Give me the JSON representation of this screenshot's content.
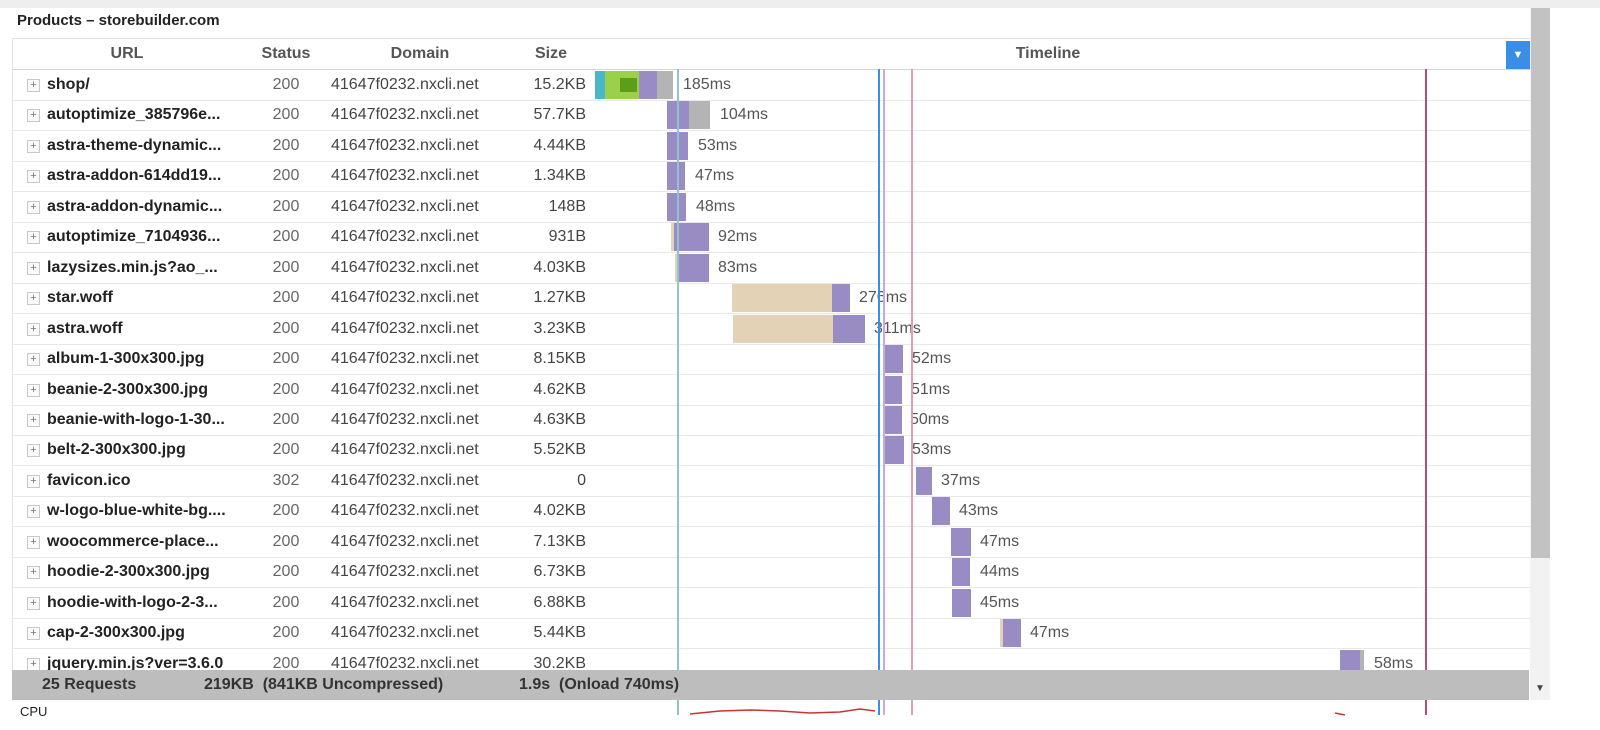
{
  "page_title": "Products – storebuilder.com",
  "columns": {
    "url": "URL",
    "status": "Status",
    "domain": "Domain",
    "size": "Size",
    "timeline": "Timeline"
  },
  "timeline_menu_icon": "chevron-down-icon",
  "colors": {
    "dns": "#4ab6c8",
    "connect": "#9bd04a",
    "ssl": "#5a9e1a",
    "wait": "#998cc4",
    "receive": "#b4b4b4",
    "blocked": "#e3d2b6",
    "marker_teal": "#8fc5c8",
    "marker_blue": "#3a8ee6",
    "marker_lavender": "#c9a9dd",
    "marker_pink": "#de9fb5",
    "marker_maroon": "#b54c73"
  },
  "rows": [
    {
      "url": "shop/",
      "status": "200",
      "domain": "41647f0232.nxcli.net",
      "size": "15.2KB",
      "duration": "185ms"
    },
    {
      "url": "autoptimize_385796e...",
      "status": "200",
      "domain": "41647f0232.nxcli.net",
      "size": "57.7KB",
      "duration": "104ms"
    },
    {
      "url": "astra-theme-dynamic...",
      "status": "200",
      "domain": "41647f0232.nxcli.net",
      "size": "4.44KB",
      "duration": "53ms"
    },
    {
      "url": "astra-addon-614dd19...",
      "status": "200",
      "domain": "41647f0232.nxcli.net",
      "size": "1.34KB",
      "duration": "47ms"
    },
    {
      "url": "astra-addon-dynamic...",
      "status": "200",
      "domain": "41647f0232.nxcli.net",
      "size": "148B",
      "duration": "48ms"
    },
    {
      "url": "autoptimize_7104936...",
      "status": "200",
      "domain": "41647f0232.nxcli.net",
      "size": "931B",
      "duration": "92ms"
    },
    {
      "url": "lazysizes.min.js?ao_...",
      "status": "200",
      "domain": "41647f0232.nxcli.net",
      "size": "4.03KB",
      "duration": "83ms"
    },
    {
      "url": "star.woff",
      "status": "200",
      "domain": "41647f0232.nxcli.net",
      "size": "1.27KB",
      "duration": "276ms"
    },
    {
      "url": "astra.woff",
      "status": "200",
      "domain": "41647f0232.nxcli.net",
      "size": "3.23KB",
      "duration": "311ms"
    },
    {
      "url": "album-1-300x300.jpg",
      "status": "200",
      "domain": "41647f0232.nxcli.net",
      "size": "8.15KB",
      "duration": "52ms"
    },
    {
      "url": "beanie-2-300x300.jpg",
      "status": "200",
      "domain": "41647f0232.nxcli.net",
      "size": "4.62KB",
      "duration": "51ms"
    },
    {
      "url": "beanie-with-logo-1-30...",
      "status": "200",
      "domain": "41647f0232.nxcli.net",
      "size": "4.63KB",
      "duration": "50ms"
    },
    {
      "url": "belt-2-300x300.jpg",
      "status": "200",
      "domain": "41647f0232.nxcli.net",
      "size": "5.52KB",
      "duration": "53ms"
    },
    {
      "url": "favicon.ico",
      "status": "302",
      "domain": "41647f0232.nxcli.net",
      "size": "0",
      "duration": "37ms"
    },
    {
      "url": "w-logo-blue-white-bg....",
      "status": "200",
      "domain": "41647f0232.nxcli.net",
      "size": "4.02KB",
      "duration": "43ms"
    },
    {
      "url": "woocommerce-place...",
      "status": "200",
      "domain": "41647f0232.nxcli.net",
      "size": "7.13KB",
      "duration": "47ms"
    },
    {
      "url": "hoodie-2-300x300.jpg",
      "status": "200",
      "domain": "41647f0232.nxcli.net",
      "size": "6.73KB",
      "duration": "44ms"
    },
    {
      "url": "hoodie-with-logo-2-3...",
      "status": "200",
      "domain": "41647f0232.nxcli.net",
      "size": "6.88KB",
      "duration": "45ms"
    },
    {
      "url": "cap-2-300x300.jpg",
      "status": "200",
      "domain": "41647f0232.nxcli.net",
      "size": "5.44KB",
      "duration": "47ms"
    },
    {
      "url": "jquery.min.js?ver=3.6.0",
      "status": "200",
      "domain": "41647f0232.nxcli.net",
      "size": "30.2KB",
      "duration": "58ms"
    }
  ],
  "footer": {
    "requests": "25 Requests",
    "transfer": "219KB  (841KB Uncompressed)",
    "load": "1.9s  (Onload 740ms)"
  },
  "cpu_label": "CPU"
}
